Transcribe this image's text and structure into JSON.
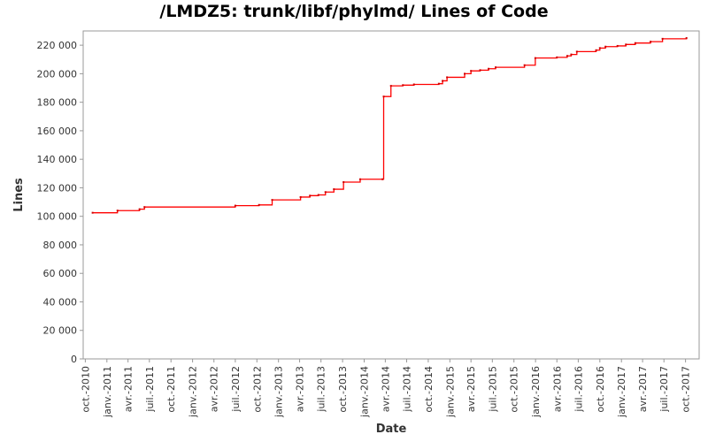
{
  "chart_data": {
    "type": "line",
    "title": "/LMDZ5: trunk/libf/phylmd/ Lines of Code",
    "xlabel": "Date",
    "ylabel": "Lines",
    "ylim": [
      0,
      230000
    ],
    "xlim": [
      "2010-09-22",
      "2017-11-28"
    ],
    "y_ticks": [
      0,
      20000,
      40000,
      60000,
      80000,
      100000,
      120000,
      140000,
      160000,
      180000,
      200000,
      220000
    ],
    "y_tick_labels": [
      "0",
      "20 000",
      "40 000",
      "60 000",
      "80 000",
      "100 000",
      "120 000",
      "140 000",
      "160 000",
      "180 000",
      "200 000",
      "220 000"
    ],
    "x_ticks": [
      "2010-10-01",
      "2011-01-01",
      "2011-04-01",
      "2011-07-01",
      "2011-10-01",
      "2012-01-01",
      "2012-04-01",
      "2012-07-01",
      "2012-10-01",
      "2013-01-01",
      "2013-04-01",
      "2013-07-01",
      "2013-10-01",
      "2014-01-01",
      "2014-04-01",
      "2014-07-01",
      "2014-10-01",
      "2015-01-01",
      "2015-04-01",
      "2015-07-01",
      "2015-10-01",
      "2016-01-01",
      "2016-04-01",
      "2016-07-01",
      "2016-10-01",
      "2017-01-01",
      "2017-04-01",
      "2017-07-01",
      "2017-10-01"
    ],
    "x_tick_labels": [
      "oct.-2010",
      "janv.-2011",
      "avr.-2011",
      "juil.-2011",
      "oct.-2011",
      "janv.-2012",
      "avr.-2012",
      "juil.-2012",
      "oct.-2012",
      "janv.-2013",
      "avr.-2013",
      "juil.-2013",
      "oct.-2013",
      "janv.-2014",
      "avr.-2014",
      "juil.-2014",
      "oct.-2014",
      "janv.-2015",
      "avr.-2015",
      "juil.-2015",
      "oct.-2015",
      "janv.-2016",
      "avr.-2016",
      "juil.-2016",
      "oct.-2016",
      "janv.-2017",
      "avr.-2017",
      "juil.-2017",
      "oct.-2017"
    ],
    "grid": false,
    "series": [
      {
        "color": "#ff0000",
        "step": true,
        "points": [
          [
            "2010-11-01",
            102500
          ],
          [
            "2011-02-15",
            104000
          ],
          [
            "2011-05-20",
            105000
          ],
          [
            "2011-06-10",
            106500
          ],
          [
            "2012-07-01",
            107500
          ],
          [
            "2012-10-10",
            108000
          ],
          [
            "2012-12-05",
            111500
          ],
          [
            "2013-04-05",
            113500
          ],
          [
            "2013-05-15",
            114500
          ],
          [
            "2013-06-20",
            115000
          ],
          [
            "2013-07-20",
            117000
          ],
          [
            "2013-08-25",
            119000
          ],
          [
            "2013-10-05",
            124000
          ],
          [
            "2013-12-15",
            126000
          ],
          [
            "2014-03-20",
            126000
          ],
          [
            "2014-03-25",
            184000
          ],
          [
            "2014-04-25",
            191500
          ],
          [
            "2014-06-15",
            192000
          ],
          [
            "2014-08-01",
            192500
          ],
          [
            "2014-11-15",
            193000
          ],
          [
            "2014-12-01",
            195000
          ],
          [
            "2014-12-20",
            197500
          ],
          [
            "2015-03-05",
            200000
          ],
          [
            "2015-04-01",
            202000
          ],
          [
            "2015-05-10",
            202500
          ],
          [
            "2015-06-15",
            203500
          ],
          [
            "2015-07-15",
            204500
          ],
          [
            "2015-11-15",
            206000
          ],
          [
            "2015-12-31",
            211000
          ],
          [
            "2016-04-01",
            211500
          ],
          [
            "2016-05-15",
            212500
          ],
          [
            "2016-06-01",
            213500
          ],
          [
            "2016-06-25",
            215500
          ],
          [
            "2016-09-15",
            216500
          ],
          [
            "2016-10-01",
            218000
          ],
          [
            "2016-10-25",
            219000
          ],
          [
            "2016-12-15",
            219500
          ],
          [
            "2017-01-20",
            220500
          ],
          [
            "2017-03-01",
            221500
          ],
          [
            "2017-05-05",
            222500
          ],
          [
            "2017-06-25",
            224500
          ],
          [
            "2017-10-05",
            225000
          ]
        ]
      }
    ]
  }
}
